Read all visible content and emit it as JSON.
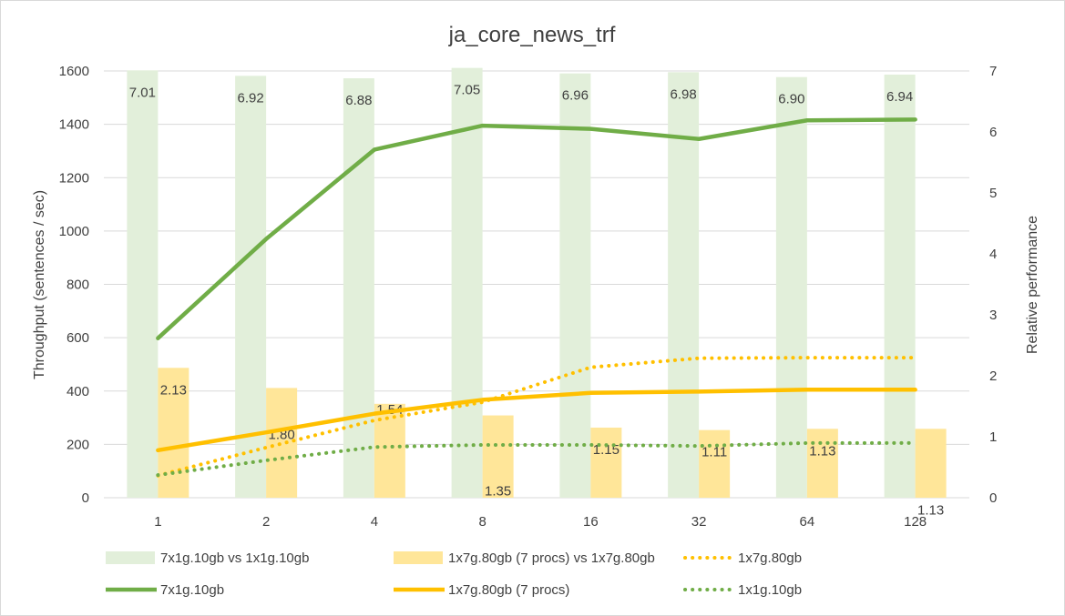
{
  "chart_data": {
    "type": "bar",
    "title": "ja_core_news_trf",
    "xlabel": "",
    "ylabel": "Throughput (sentences / sec)",
    "y2label": "Relative performance",
    "categories": [
      "1",
      "2",
      "4",
      "8",
      "16",
      "32",
      "64",
      "128"
    ],
    "ylim": [
      0,
      1600
    ],
    "yticks": [
      0,
      200,
      400,
      600,
      800,
      1000,
      1200,
      1400,
      1600
    ],
    "y2lim": [
      0,
      7
    ],
    "y2ticks": [
      0,
      1,
      2,
      3,
      4,
      5,
      6,
      7
    ],
    "grid": true,
    "legend_position": "bottom",
    "series": [
      {
        "name": "7x1g.10gb vs 1x1g.10gb",
        "kind": "bar",
        "axis": "secondary",
        "color": "#e2efda",
        "values": [
          7.01,
          6.92,
          6.88,
          7.05,
          6.96,
          6.98,
          6.9,
          6.94
        ],
        "labels": [
          "7.01",
          "6.92",
          "6.88",
          "7.05",
          "6.96",
          "6.98",
          "6.90",
          "6.94"
        ]
      },
      {
        "name": "1x7g.80gb (7 procs) vs 1x7g.80gb",
        "kind": "bar",
        "axis": "secondary",
        "color": "#ffe699",
        "values": [
          2.13,
          1.8,
          1.54,
          1.35,
          1.15,
          1.11,
          1.13,
          1.13
        ],
        "labels": [
          "2.13",
          "1.80",
          "1.54",
          "1.35",
          "1.15",
          "1.11",
          "1.13",
          "1.13"
        ]
      },
      {
        "name": "1x7g.80gb",
        "kind": "dotted-line",
        "axis": "primary",
        "color": "#ffc000",
        "values": [
          83,
          188,
          290,
          358,
          489,
          523,
          525,
          525
        ]
      },
      {
        "name": "7x1g.10gb",
        "kind": "line",
        "axis": "primary",
        "color": "#70ad47",
        "values": [
          598,
          970,
          1305,
          1395,
          1383,
          1345,
          1415,
          1418
        ]
      },
      {
        "name": "1x7g.80gb (7 procs)",
        "kind": "line",
        "axis": "primary",
        "color": "#ffc000",
        "values": [
          178,
          245,
          315,
          367,
          393,
          398,
          405,
          405
        ]
      },
      {
        "name": "1x1g.10gb",
        "kind": "dotted-line",
        "axis": "primary",
        "color": "#70ad47",
        "values": [
          85,
          140,
          190,
          198,
          198,
          194,
          205,
          205
        ]
      }
    ]
  }
}
